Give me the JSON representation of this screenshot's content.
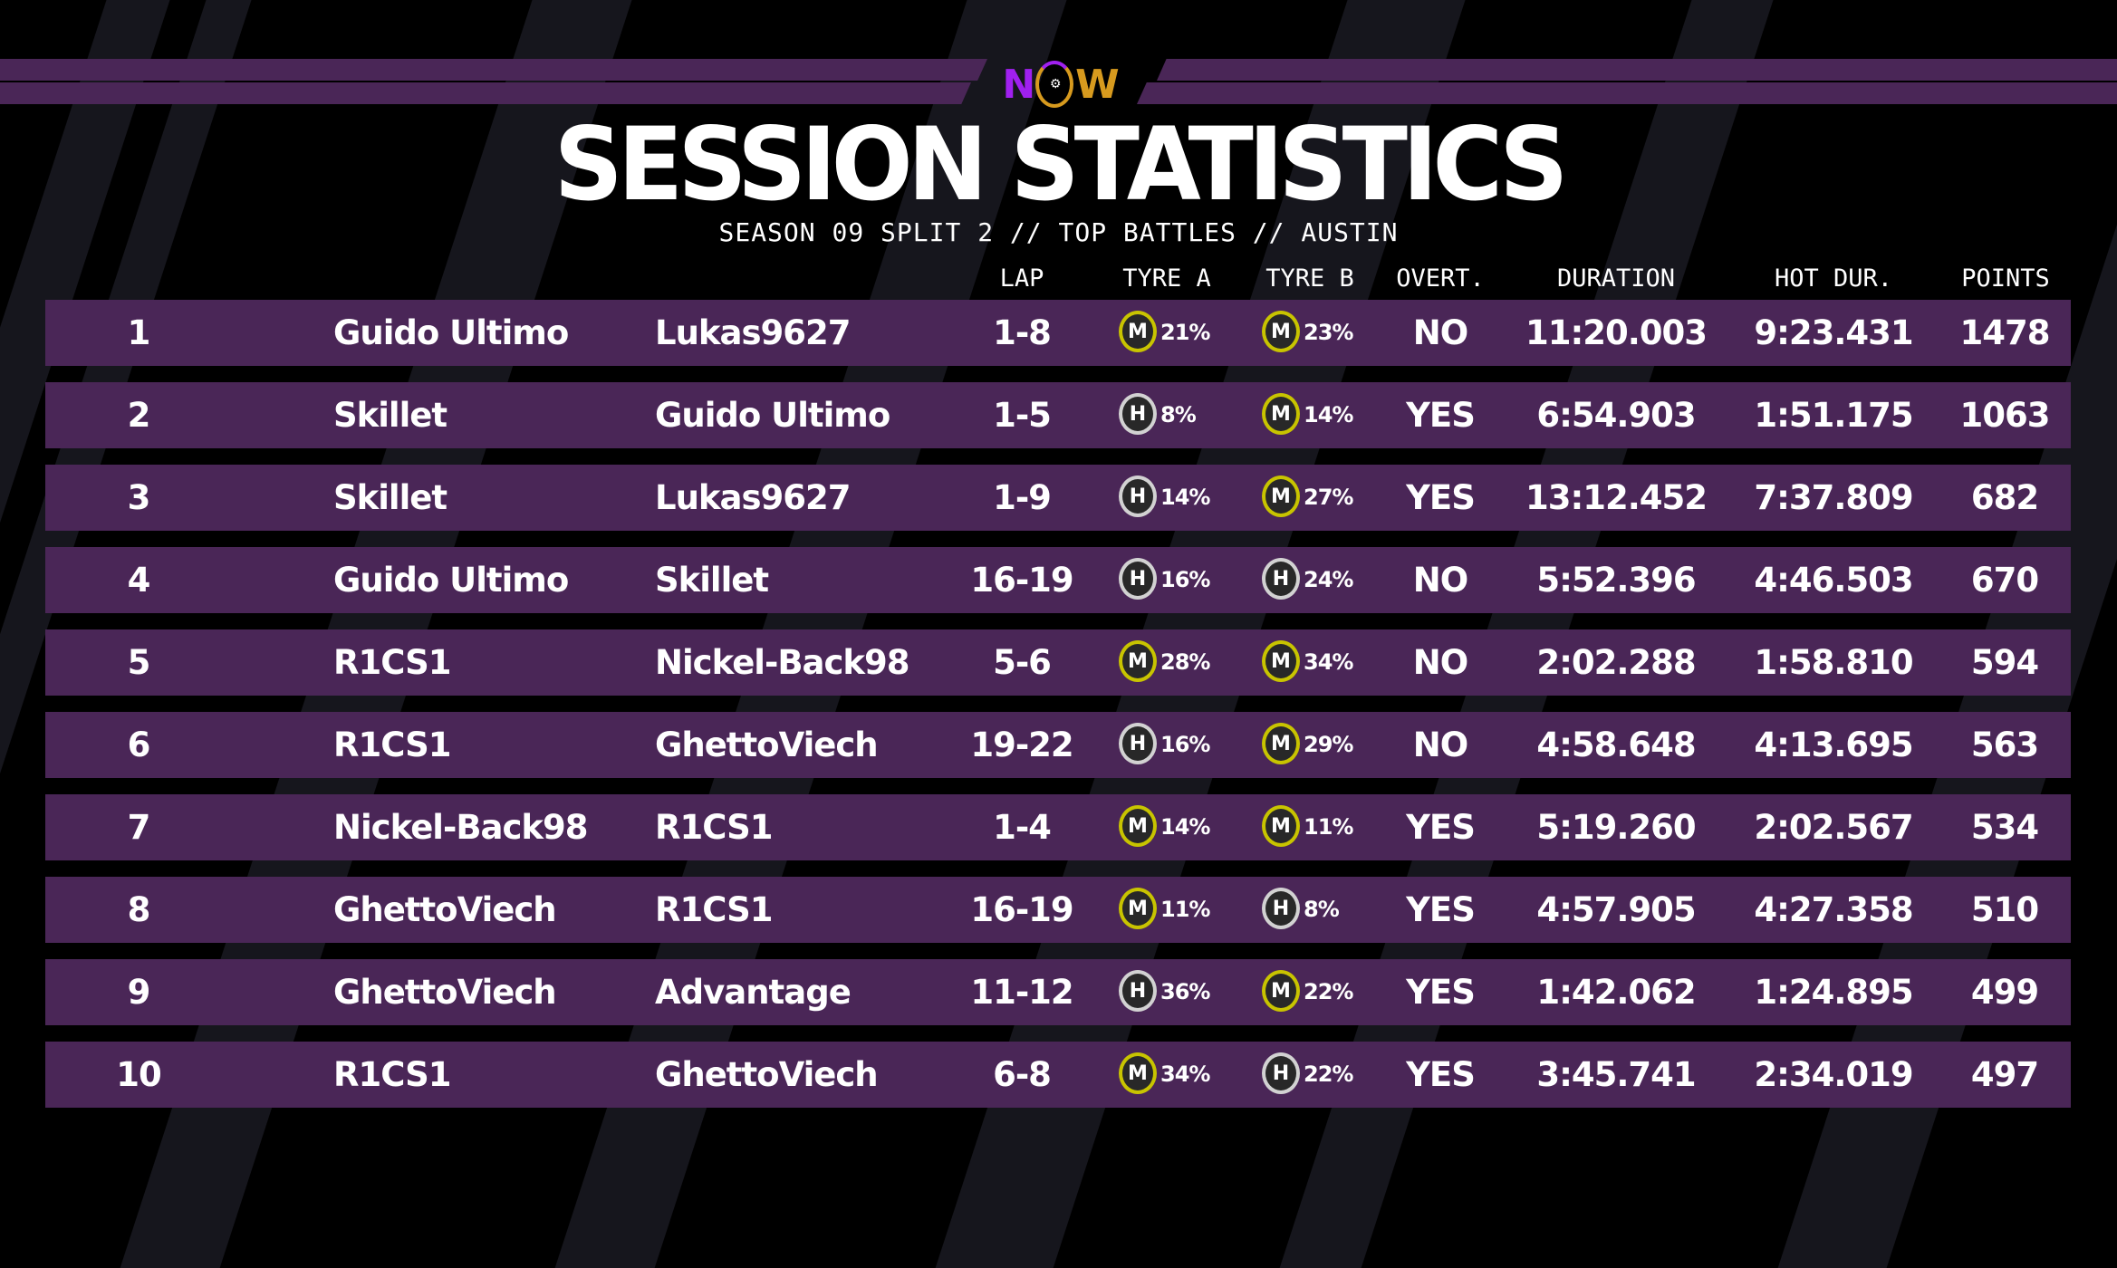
{
  "brand": {
    "logo_text": "NOW"
  },
  "colors": {
    "row_bg": "#4a2657",
    "medium": "#c8c400",
    "hard": "#d2d2d2",
    "background": "#000000"
  },
  "header": {
    "title": "SESSION STATISTICS",
    "subtitle": "SEASON 09 SPLIT 2 // TOP BATTLES // AUSTIN"
  },
  "columns": {
    "lap": "LAP",
    "tyre_a": "TYRE A",
    "tyre_b": "TYRE B",
    "overt": "OVERT.",
    "duration": "DURATION",
    "hot_dur": "HOT DUR.",
    "points": "POINTS"
  },
  "rows": [
    {
      "rank": "1",
      "driver_a": "Guido Ultimo",
      "driver_b": "Lukas9627",
      "lap": "1-8",
      "tyre_a": "M",
      "tyre_a_pct": "21%",
      "tyre_b": "M",
      "tyre_b_pct": "23%",
      "overt": "NO",
      "duration": "11:20.003",
      "hot_dur": "9:23.431",
      "points": "1478"
    },
    {
      "rank": "2",
      "driver_a": "Skillet",
      "driver_b": "Guido Ultimo",
      "lap": "1-5",
      "tyre_a": "H",
      "tyre_a_pct": "8%",
      "tyre_b": "M",
      "tyre_b_pct": "14%",
      "overt": "YES",
      "duration": "6:54.903",
      "hot_dur": "1:51.175",
      "points": "1063"
    },
    {
      "rank": "3",
      "driver_a": "Skillet",
      "driver_b": "Lukas9627",
      "lap": "1-9",
      "tyre_a": "H",
      "tyre_a_pct": "14%",
      "tyre_b": "M",
      "tyre_b_pct": "27%",
      "overt": "YES",
      "duration": "13:12.452",
      "hot_dur": "7:37.809",
      "points": "682"
    },
    {
      "rank": "4",
      "driver_a": "Guido Ultimo",
      "driver_b": "Skillet",
      "lap": "16-19",
      "tyre_a": "H",
      "tyre_a_pct": "16%",
      "tyre_b": "H",
      "tyre_b_pct": "24%",
      "overt": "NO",
      "duration": "5:52.396",
      "hot_dur": "4:46.503",
      "points": "670"
    },
    {
      "rank": "5",
      "driver_a": "R1CS1",
      "driver_b": "Nickel-Back98",
      "lap": "5-6",
      "tyre_a": "M",
      "tyre_a_pct": "28%",
      "tyre_b": "M",
      "tyre_b_pct": "34%",
      "overt": "NO",
      "duration": "2:02.288",
      "hot_dur": "1:58.810",
      "points": "594"
    },
    {
      "rank": "6",
      "driver_a": "R1CS1",
      "driver_b": "GhettoViech",
      "lap": "19-22",
      "tyre_a": "H",
      "tyre_a_pct": "16%",
      "tyre_b": "M",
      "tyre_b_pct": "29%",
      "overt": "NO",
      "duration": "4:58.648",
      "hot_dur": "4:13.695",
      "points": "563"
    },
    {
      "rank": "7",
      "driver_a": "Nickel-Back98",
      "driver_b": "R1CS1",
      "lap": "1-4",
      "tyre_a": "M",
      "tyre_a_pct": "14%",
      "tyre_b": "M",
      "tyre_b_pct": "11%",
      "overt": "YES",
      "duration": "5:19.260",
      "hot_dur": "2:02.567",
      "points": "534"
    },
    {
      "rank": "8",
      "driver_a": "GhettoViech",
      "driver_b": "R1CS1",
      "lap": "16-19",
      "tyre_a": "M",
      "tyre_a_pct": "11%",
      "tyre_b": "H",
      "tyre_b_pct": "8%",
      "overt": "YES",
      "duration": "4:57.905",
      "hot_dur": "4:27.358",
      "points": "510"
    },
    {
      "rank": "9",
      "driver_a": "GhettoViech",
      "driver_b": "Advantage",
      "lap": "11-12",
      "tyre_a": "H",
      "tyre_a_pct": "36%",
      "tyre_b": "M",
      "tyre_b_pct": "22%",
      "overt": "YES",
      "duration": "1:42.062",
      "hot_dur": "1:24.895",
      "points": "499"
    },
    {
      "rank": "10",
      "driver_a": "R1CS1",
      "driver_b": "GhettoViech",
      "lap": "6-8",
      "tyre_a": "M",
      "tyre_a_pct": "34%",
      "tyre_b": "H",
      "tyre_b_pct": "22%",
      "overt": "YES",
      "duration": "3:45.741",
      "hot_dur": "2:34.019",
      "points": "497"
    }
  ]
}
